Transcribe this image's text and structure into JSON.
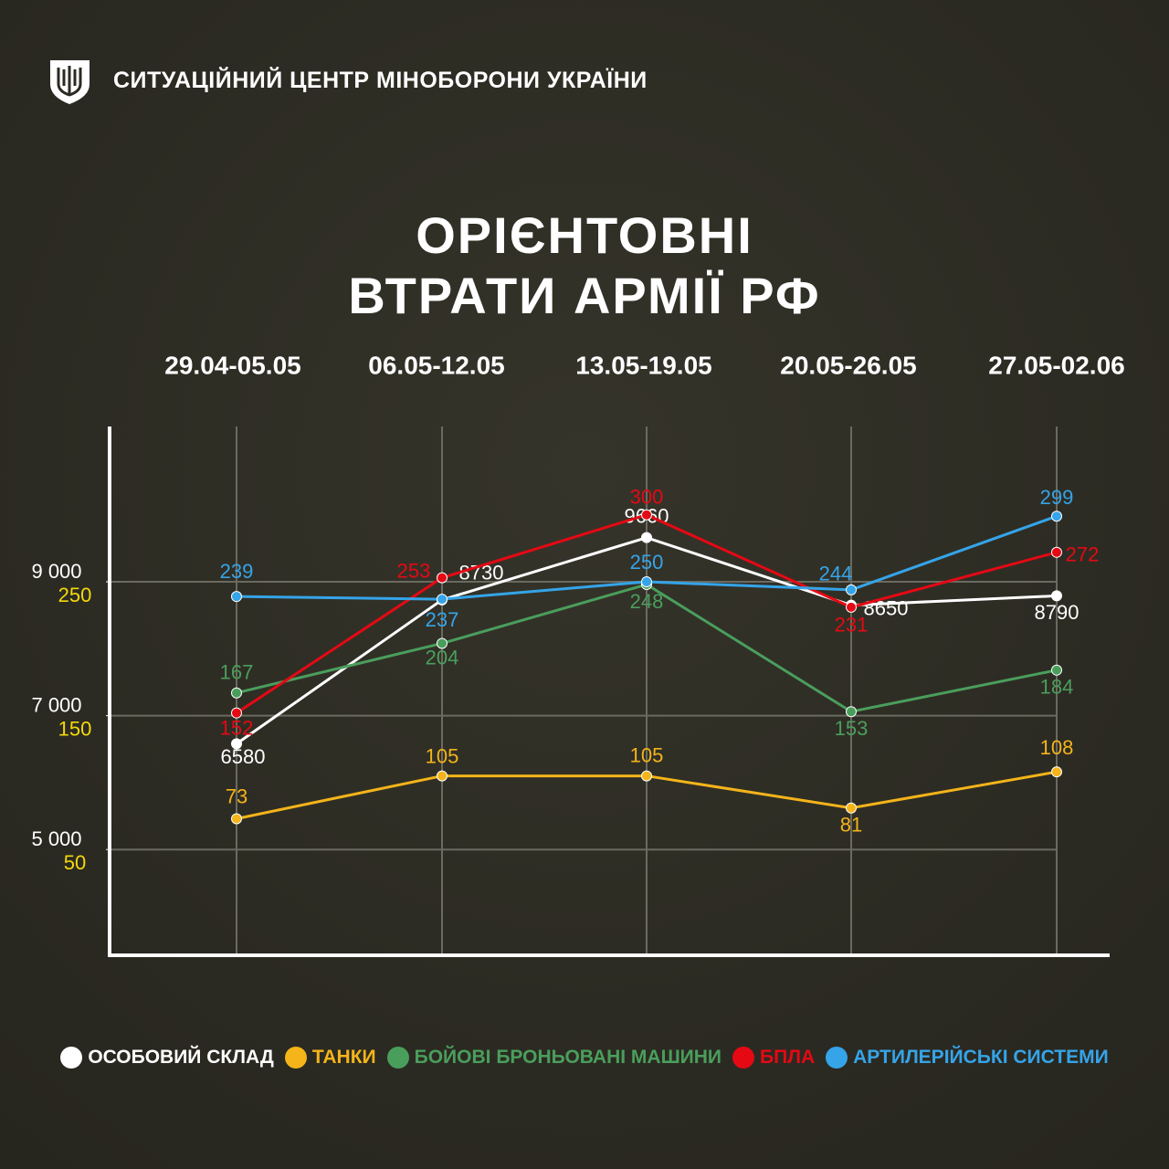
{
  "header": {
    "org": "СИТУАЦІЙНИЙ ЦЕНТР МІНОБОРОНИ УКРАЇНИ"
  },
  "chart_data": {
    "type": "line",
    "title": "ОРІЄНТОВНІ ВТРАТИ АРМІЇ РФ",
    "categories": [
      "29.04-05.05",
      "06.05-12.05",
      "13.05-19.05",
      "20.05-26.05",
      "27.05-02.06"
    ],
    "ylim": [
      3420,
      11320
    ],
    "yticks": [
      {
        "value": 5000,
        "label": "5 000"
      },
      {
        "value": 7000,
        "label": "7 000"
      },
      {
        "value": 9000,
        "label": "9 000"
      }
    ],
    "y2lim": [
      -29,
      366
    ],
    "y2ticks": [
      50,
      150,
      250
    ],
    "grid": true,
    "series": [
      {
        "name": "ОСОБОВИЙ СКЛАД",
        "color": "#ffffff",
        "values": [
          6580,
          8730,
          9660,
          8650,
          8790
        ]
      },
      {
        "name": "ТАНКИ",
        "color": "#f4b41a",
        "axis": "y2",
        "values": [
          73,
          105,
          105,
          81,
          108
        ]
      },
      {
        "name": "БОЙОВІ БРОНЬОВАНІ МАШИНИ",
        "color": "#4a9e5c",
        "axis": "y2",
        "values": [
          167,
          204,
          248,
          153,
          184
        ]
      },
      {
        "name": "БПЛА",
        "color": "#e50914",
        "axis": "y2",
        "values": [
          152,
          253,
          300,
          231,
          272
        ]
      },
      {
        "name": "АРТИЛЕРІЙСЬКІ СИСТЕМИ",
        "color": "#35a4e8",
        "axis": "y2",
        "values": [
          239,
          237,
          250,
          244,
          299
        ]
      }
    ]
  }
}
